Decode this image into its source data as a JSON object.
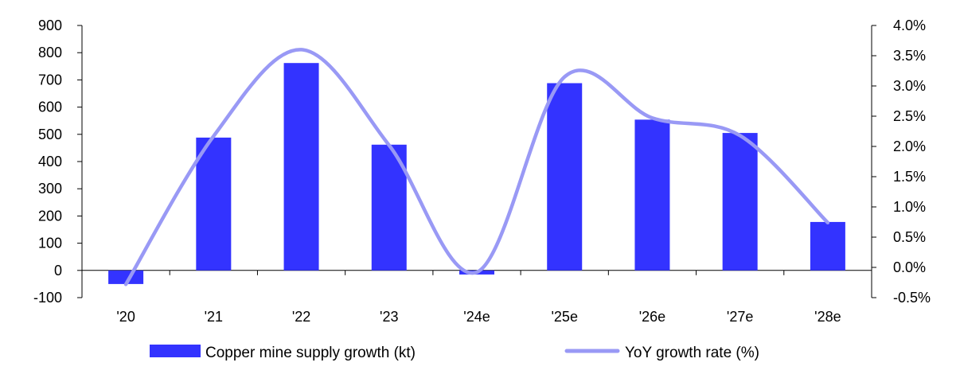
{
  "chart_data": {
    "type": "bar",
    "categories": [
      "'20",
      "'21",
      "'22",
      "'23",
      "'24e",
      "'25e",
      "'26e",
      "'27e",
      "'28e"
    ],
    "series": [
      {
        "name": "Copper mine supply growth (kt)",
        "type": "bar",
        "axis": "left",
        "color": "#3333ff",
        "values": [
          -50,
          488,
          762,
          462,
          -15,
          688,
          554,
          505,
          178
        ]
      },
      {
        "name": "YoY growth rate (%)",
        "type": "line",
        "axis": "right",
        "smooth": true,
        "color": "#9999f5",
        "values": [
          -0.28,
          2.17,
          3.6,
          2.02,
          -0.08,
          3.15,
          2.47,
          2.18,
          0.74
        ]
      }
    ],
    "y_left": {
      "min": -100,
      "max": 900,
      "ticks": [
        -100,
        0,
        100,
        200,
        300,
        400,
        500,
        600,
        700,
        800,
        900
      ],
      "tick_labels": [
        "-100",
        "0",
        "100",
        "200",
        "300",
        "400",
        "500",
        "600",
        "700",
        "800",
        "900"
      ]
    },
    "y_right": {
      "min": -0.5,
      "max": 4.0,
      "ticks": [
        -0.5,
        0.0,
        0.5,
        1.0,
        1.5,
        2.0,
        2.5,
        3.0,
        3.5,
        4.0
      ],
      "tick_labels": [
        "-0.5%",
        "0.0%",
        "0.5%",
        "1.0%",
        "1.5%",
        "2.0%",
        "2.5%",
        "3.0%",
        "3.5%",
        "4.0%"
      ]
    },
    "grid": false,
    "legend_position": "bottom-center"
  }
}
